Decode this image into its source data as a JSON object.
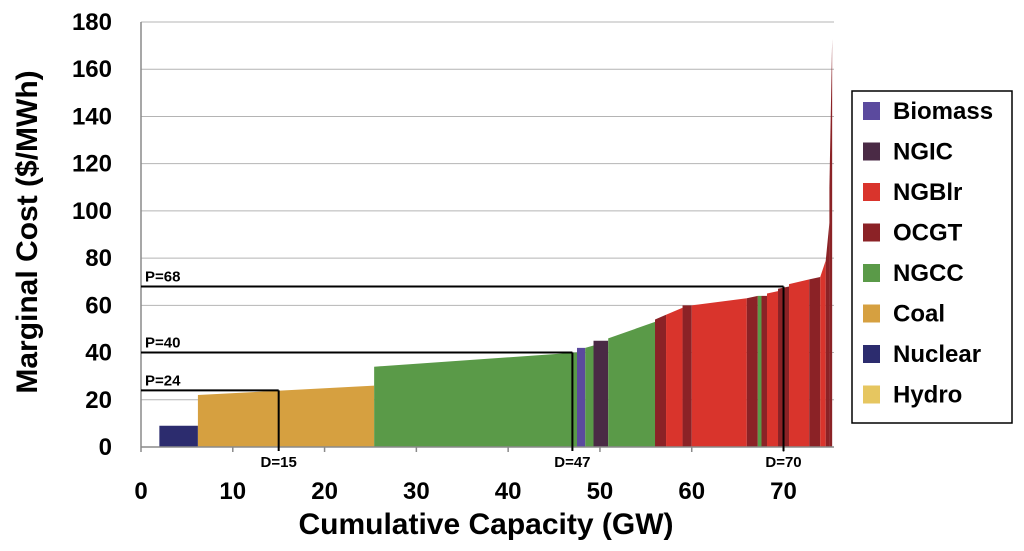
{
  "chart_data": {
    "type": "area",
    "title": "",
    "xlabel": "Cumulative Capacity (GW)",
    "ylabel": "Marginal Cost ($/MWh)",
    "xlim": [
      0,
      75.5
    ],
    "ylim": [
      0,
      180
    ],
    "x_ticks": [
      0,
      10,
      20,
      30,
      40,
      50,
      60,
      70
    ],
    "y_ticks": [
      0,
      20,
      40,
      60,
      80,
      100,
      120,
      140,
      160,
      180
    ],
    "grid": "horizontal",
    "legend_position": "right",
    "series": [
      {
        "name": "Biomass",
        "color": "#5b4a9e"
      },
      {
        "name": "NGIC",
        "color": "#4a2a45"
      },
      {
        "name": "NGBlr",
        "color": "#d9342c"
      },
      {
        "name": "OCGT",
        "color": "#8b2226"
      },
      {
        "name": "NGCC",
        "color": "#5a9a48"
      },
      {
        "name": "Coal",
        "color": "#d6a040"
      },
      {
        "name": "Nuclear",
        "color": "#2c2c6e"
      },
      {
        "name": "Hydro",
        "color": "#e6c660"
      }
    ],
    "segments": [
      {
        "type": "Nuclear",
        "x0": 2,
        "x1": 6.2,
        "y0": 9,
        "y1": 9
      },
      {
        "type": "Coal",
        "x0": 6.2,
        "x1": 25.4,
        "y0": 22,
        "y1": 26
      },
      {
        "type": "NGCC",
        "x0": 25.4,
        "x1": 47.5,
        "y0": 34,
        "y1": 40
      },
      {
        "type": "Biomass",
        "x0": 47.5,
        "x1": 48.4,
        "y0": 42,
        "y1": 42
      },
      {
        "type": "NGCC",
        "x0": 48.4,
        "x1": 49.3,
        "y0": 42,
        "y1": 43
      },
      {
        "type": "NGIC",
        "x0": 49.3,
        "x1": 50.9,
        "y0": 45,
        "y1": 45
      },
      {
        "type": "NGCC",
        "x0": 50.9,
        "x1": 56.0,
        "y0": 46,
        "y1": 53
      },
      {
        "type": "OCGT",
        "x0": 56.0,
        "x1": 57.2,
        "y0": 54,
        "y1": 56
      },
      {
        "type": "NGBlr",
        "x0": 57.2,
        "x1": 59.0,
        "y0": 56,
        "y1": 59
      },
      {
        "type": "OCGT",
        "x0": 59.0,
        "x1": 60.0,
        "y0": 60,
        "y1": 60
      },
      {
        "type": "NGBlr",
        "x0": 60.0,
        "x1": 66.0,
        "y0": 60,
        "y1": 63
      },
      {
        "type": "OCGT",
        "x0": 66.0,
        "x1": 67.2,
        "y0": 63,
        "y1": 64
      },
      {
        "type": "NGCC",
        "x0": 67.2,
        "x1": 67.6,
        "y0": 64,
        "y1": 64
      },
      {
        "type": "OCGT",
        "x0": 67.6,
        "x1": 68.2,
        "y0": 64,
        "y1": 64
      },
      {
        "type": "NGBlr",
        "x0": 68.2,
        "x1": 69.4,
        "y0": 65,
        "y1": 66
      },
      {
        "type": "OCGT",
        "x0": 69.4,
        "x1": 70.6,
        "y0": 67,
        "y1": 68
      },
      {
        "type": "NGBlr",
        "x0": 70.6,
        "x1": 72.8,
        "y0": 69,
        "y1": 71
      },
      {
        "type": "OCGT",
        "x0": 72.8,
        "x1": 74.0,
        "y0": 71,
        "y1": 72
      },
      {
        "type": "NGBlr",
        "x0": 74.0,
        "x1": 74.6,
        "y0": 72,
        "y1": 79
      },
      {
        "type": "OCGT",
        "x0": 74.6,
        "x1": 75.0,
        "y0": 79,
        "y1": 95
      },
      {
        "type": "OCGT",
        "x0": 75.0,
        "x1": 75.3,
        "y0": 110,
        "y1": 173
      }
    ],
    "annotations": [
      {
        "label": "P=24",
        "price": 24,
        "demand_label": "D=15",
        "demand": 15
      },
      {
        "label": "P=40",
        "price": 40,
        "demand_label": "D=47",
        "demand": 47
      },
      {
        "label": "P=68",
        "price": 68,
        "demand_label": "D=70",
        "demand": 70
      }
    ]
  }
}
